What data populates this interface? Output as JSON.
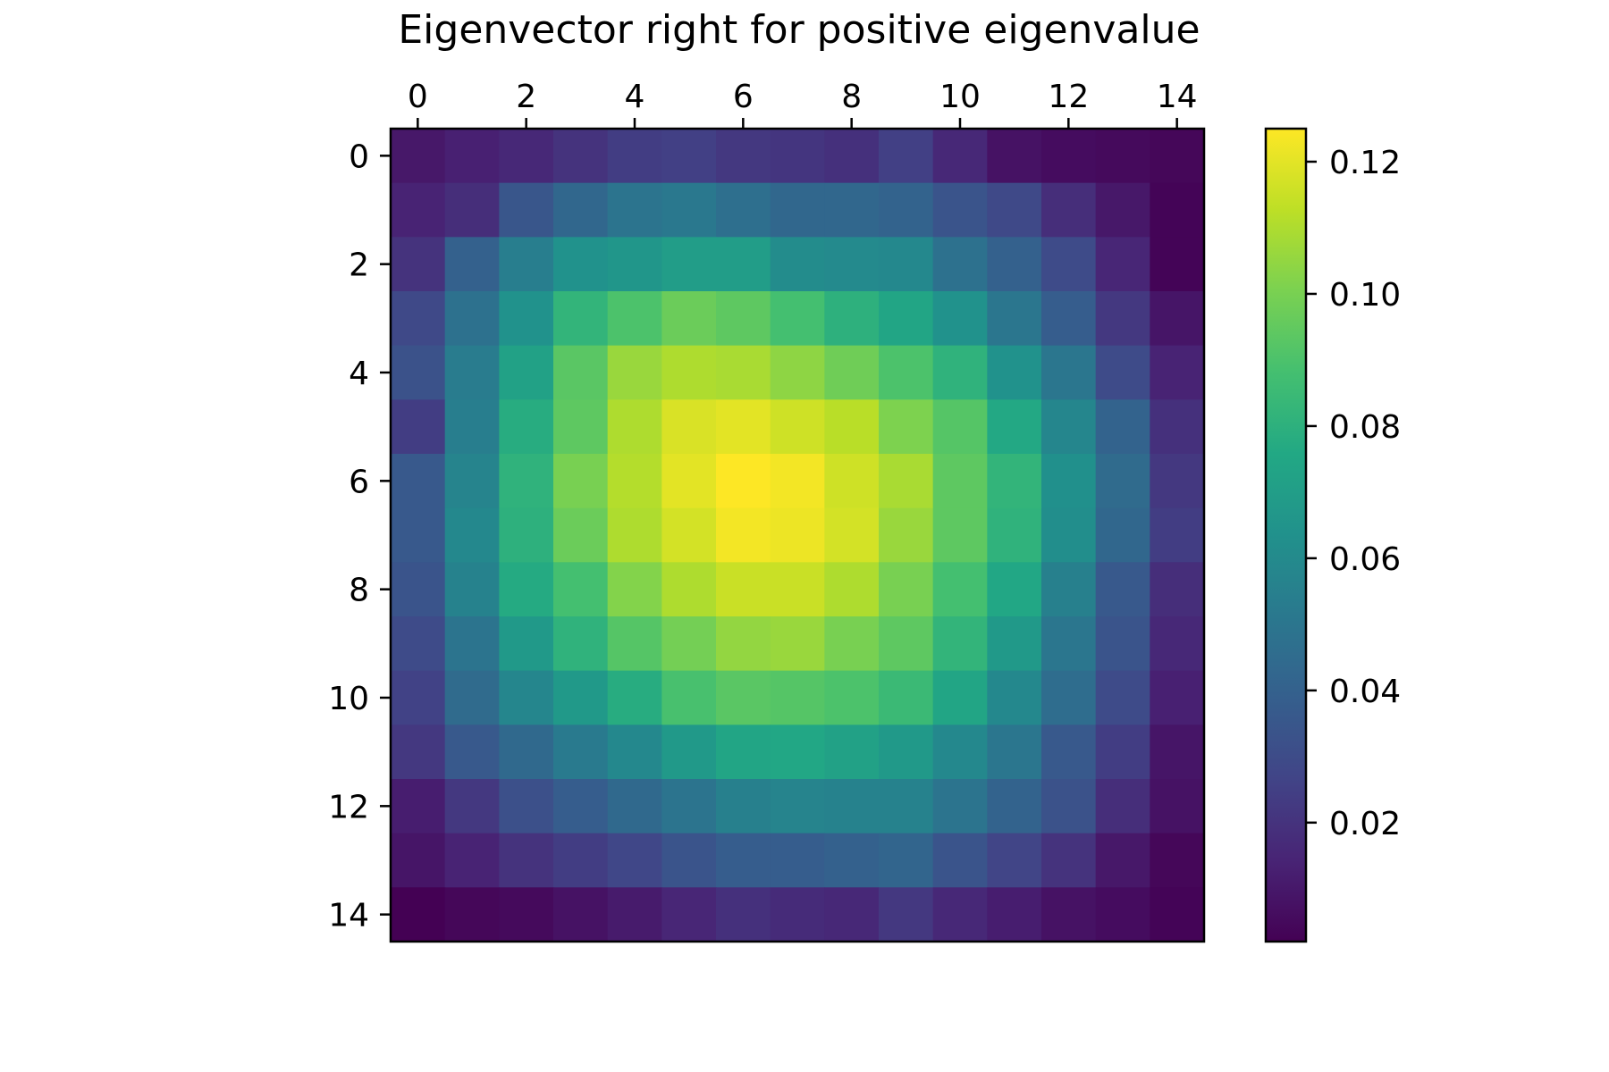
{
  "chart_data": {
    "type": "heatmap",
    "title": "Eigenvector right for positive eigenvalue",
    "xlabel": "",
    "ylabel": "",
    "x_ticks": [
      0,
      2,
      4,
      6,
      8,
      10,
      12,
      14
    ],
    "y_ticks": [
      0,
      2,
      4,
      6,
      8,
      10,
      12,
      14
    ],
    "x_axis_position": "top",
    "y_origin": "top",
    "grid": false,
    "colormap": "viridis",
    "vmin": 0.002,
    "vmax": 0.125,
    "colorbar": {
      "position": "right",
      "ticks": [
        0.02,
        0.04,
        0.06,
        0.08,
        0.1,
        0.12
      ],
      "tick_labels": [
        "0.02",
        "0.04",
        "0.06",
        "0.08",
        "0.10",
        "0.12"
      ]
    },
    "values": [
      [
        0.01,
        0.013,
        0.016,
        0.02,
        0.024,
        0.025,
        0.022,
        0.021,
        0.019,
        0.025,
        0.016,
        0.008,
        0.006,
        0.005,
        0.004
      ],
      [
        0.014,
        0.018,
        0.035,
        0.043,
        0.049,
        0.051,
        0.047,
        0.043,
        0.043,
        0.041,
        0.034,
        0.029,
        0.018,
        0.01,
        0.003
      ],
      [
        0.02,
        0.04,
        0.054,
        0.064,
        0.066,
        0.07,
        0.07,
        0.061,
        0.06,
        0.059,
        0.048,
        0.04,
        0.03,
        0.015,
        0.003
      ],
      [
        0.029,
        0.048,
        0.064,
        0.082,
        0.09,
        0.097,
        0.094,
        0.088,
        0.08,
        0.074,
        0.064,
        0.05,
        0.038,
        0.022,
        0.009
      ],
      [
        0.033,
        0.053,
        0.072,
        0.093,
        0.106,
        0.11,
        0.109,
        0.104,
        0.098,
        0.09,
        0.081,
        0.064,
        0.05,
        0.03,
        0.014
      ],
      [
        0.024,
        0.054,
        0.078,
        0.094,
        0.11,
        0.118,
        0.12,
        0.116,
        0.112,
        0.101,
        0.092,
        0.076,
        0.058,
        0.041,
        0.019
      ],
      [
        0.036,
        0.057,
        0.081,
        0.1,
        0.111,
        0.12,
        0.125,
        0.123,
        0.116,
        0.109,
        0.094,
        0.082,
        0.063,
        0.045,
        0.022
      ],
      [
        0.036,
        0.059,
        0.08,
        0.097,
        0.11,
        0.117,
        0.123,
        0.122,
        0.117,
        0.106,
        0.094,
        0.081,
        0.062,
        0.043,
        0.024
      ],
      [
        0.034,
        0.056,
        0.077,
        0.088,
        0.102,
        0.11,
        0.115,
        0.115,
        0.11,
        0.1,
        0.088,
        0.075,
        0.055,
        0.036,
        0.018
      ],
      [
        0.03,
        0.049,
        0.068,
        0.081,
        0.092,
        0.099,
        0.105,
        0.106,
        0.1,
        0.094,
        0.082,
        0.068,
        0.05,
        0.034,
        0.016
      ],
      [
        0.026,
        0.045,
        0.058,
        0.068,
        0.078,
        0.089,
        0.093,
        0.092,
        0.09,
        0.085,
        0.074,
        0.059,
        0.046,
        0.03,
        0.013
      ],
      [
        0.022,
        0.036,
        0.044,
        0.052,
        0.059,
        0.068,
        0.074,
        0.075,
        0.072,
        0.068,
        0.059,
        0.05,
        0.036,
        0.024,
        0.009
      ],
      [
        0.012,
        0.022,
        0.032,
        0.038,
        0.044,
        0.049,
        0.055,
        0.057,
        0.056,
        0.056,
        0.049,
        0.041,
        0.033,
        0.018,
        0.008
      ],
      [
        0.009,
        0.014,
        0.02,
        0.024,
        0.028,
        0.034,
        0.038,
        0.038,
        0.04,
        0.042,
        0.034,
        0.027,
        0.02,
        0.01,
        0.004
      ],
      [
        0.002,
        0.004,
        0.005,
        0.008,
        0.011,
        0.015,
        0.019,
        0.017,
        0.016,
        0.022,
        0.016,
        0.012,
        0.008,
        0.006,
        0.003
      ]
    ]
  }
}
